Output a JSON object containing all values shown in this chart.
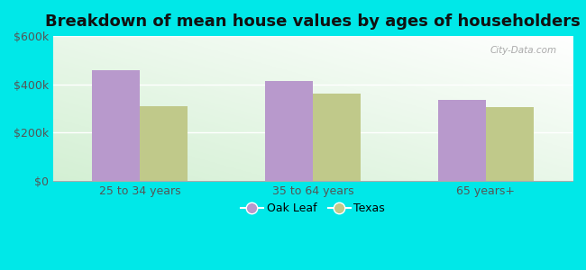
{
  "title": "Breakdown of mean house values by ages of householders",
  "categories": [
    "25 to 34 years",
    "35 to 64 years",
    "65 years+"
  ],
  "oak_leaf_values": [
    460000,
    415000,
    335000
  ],
  "texas_values": [
    310000,
    360000,
    305000
  ],
  "bar_color_oak_leaf": "#b899cc",
  "bar_color_texas": "#c0c98a",
  "ylim": [
    0,
    600000
  ],
  "yticks": [
    0,
    200000,
    400000,
    600000
  ],
  "ytick_labels": [
    "$0",
    "$200k",
    "$400k",
    "$600k"
  ],
  "legend_labels": [
    "Oak Leaf",
    "Texas"
  ],
  "outer_bg": "#00e8e8",
  "plot_bg_color": "#e8f8e8",
  "title_fontsize": 13,
  "bar_width": 0.55,
  "group_positions": [
    1.0,
    3.0,
    5.0
  ]
}
